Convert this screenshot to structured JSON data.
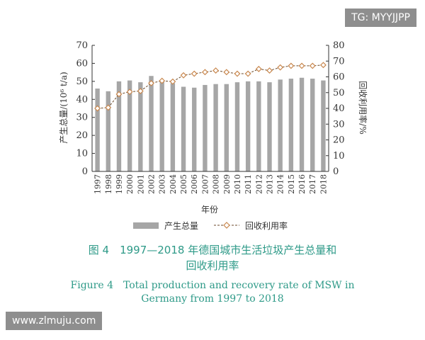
{
  "watermarks": {
    "top_right": "TG: MYYJJPP",
    "bottom_left": "www.zlmuju.com"
  },
  "caption": {
    "cn_line1": "图 4　1997—2018 年德国城市生活垃圾产生总量和",
    "cn_line2": "回收利用率",
    "en_line1": "Figure 4　Total production and recovery rate of MSW in",
    "en_line2": "Germany from 1997 to 2018"
  },
  "colors": {
    "bar": "#a6a6a6",
    "line": "#6b4a2a",
    "marker_fill": "#ffffff",
    "marker_stroke": "#c9884f",
    "caption": "#2e9a88"
  },
  "chart_data": {
    "type": "bar",
    "xlabel": "年份",
    "ylabel": "产生总量/(10⁶ t/a)",
    "y2label": "回收利用率/%",
    "ylim": [
      0,
      70
    ],
    "y2lim": [
      0,
      80
    ],
    "yticks": [
      0,
      10,
      20,
      30,
      40,
      50,
      60,
      70
    ],
    "y2ticks": [
      0,
      10,
      20,
      30,
      40,
      50,
      60,
      70,
      80
    ],
    "legend_position": "bottom",
    "categories": [
      "1997",
      "1998",
      "1999",
      "2000",
      "2001",
      "2002",
      "2003",
      "2004",
      "2005",
      "2006",
      "2007",
      "2008",
      "2009",
      "2010",
      "2011",
      "2012",
      "2013",
      "2014",
      "2015",
      "2016",
      "2017",
      "2018"
    ],
    "series": [
      {
        "name": "产生总量",
        "type": "bar",
        "axis": "left",
        "values": [
          46,
          44.5,
          50,
          50.5,
          49.5,
          53,
          50.5,
          49,
          47,
          46.5,
          48,
          48.5,
          48.5,
          49.5,
          50,
          50,
          49.5,
          51,
          51.5,
          52,
          51.5,
          50.5
        ]
      },
      {
        "name": "回收利用率",
        "type": "line",
        "axis": "right",
        "values": [
          40,
          40.5,
          49,
          50.5,
          51,
          56,
          57.5,
          57,
          61,
          62,
          63,
          64,
          63,
          62,
          62,
          65,
          64,
          66,
          67,
          67,
          67,
          67.5
        ]
      }
    ]
  }
}
